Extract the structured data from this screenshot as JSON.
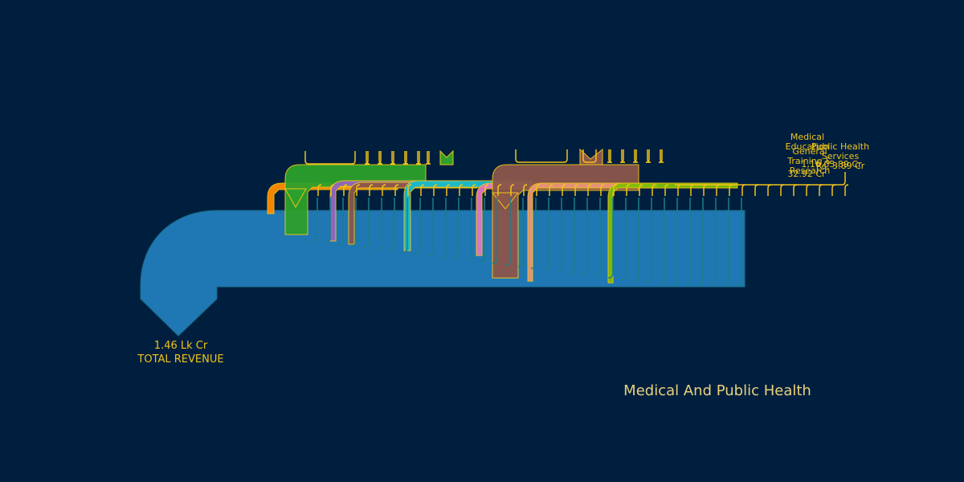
{
  "chart_data": {
    "type": "sankey",
    "title": "Medical And Public Health",
    "root": {
      "value_label": "1.46 Lk Cr",
      "name": "TOTAL REVENUE"
    },
    "visible_labels": [
      {
        "lines": [
          "Medical",
          "Education"
        ]
      },
      {
        "lines": [
          "General",
          "Training &",
          "Research"
        ]
      },
      {
        "lines": [
          "Public Health",
          "Services",
          "Rs. 3.89 Cr"
        ]
      },
      {
        "lines": [
          "1,16,03.89 Cr"
        ]
      },
      {
        "lines": [
          "32.92 Cr"
        ]
      }
    ],
    "colors": {
      "background": "#001f3f",
      "root": "#1f77b4",
      "stroke": "#f0c419",
      "teal": "#1b7f8a",
      "orange": "#ff8c00",
      "green": "#2ca02c",
      "purple": "#9467bd",
      "brown": "#8c564b",
      "cyan": "#17becf",
      "pink": "#e377c2",
      "salmon": "#e9967a",
      "lime": "#7fbf00",
      "gold": "#f0c419"
    }
  }
}
